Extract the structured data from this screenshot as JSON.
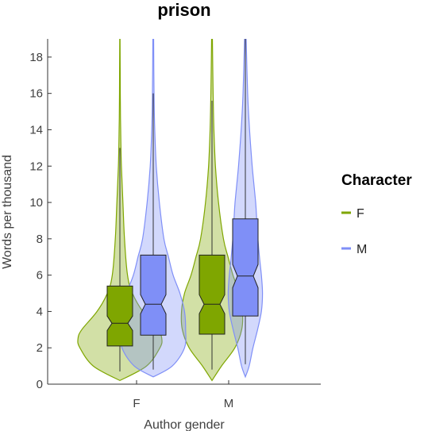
{
  "chart_data": {
    "type": "violin",
    "title": "prison",
    "xlabel": "Author gender",
    "ylabel": "Words per thousand",
    "categories": [
      "F",
      "M"
    ],
    "ylim": [
      0,
      19
    ],
    "yticks": [
      "0",
      "2",
      "4",
      "6",
      "8",
      "10",
      "12",
      "14",
      "16",
      "18"
    ],
    "legend": {
      "title": "Character",
      "position": "right"
    },
    "series": [
      {
        "name": "F",
        "color": "#7fa600",
        "boxes": [
          {
            "category": "F",
            "min": 0.7,
            "q1": 2.1,
            "median": 3.35,
            "q3": 5.4,
            "max": 13.0,
            "violin": [
              [
                0.2,
                0.0
              ],
              [
                1,
                0.7
              ],
              [
                2,
                1.05
              ],
              [
                2.5,
                1.1
              ],
              [
                3,
                1.0
              ],
              [
                4,
                0.6
              ],
              [
                5,
                0.33
              ],
              [
                6,
                0.2
              ],
              [
                8,
                0.12
              ],
              [
                10,
                0.08
              ],
              [
                12,
                0.04
              ],
              [
                14,
                0.02
              ],
              [
                16,
                0.01
              ],
              [
                19,
                0.005
              ]
            ]
          },
          {
            "category": "M",
            "min": 0.8,
            "q1": 2.75,
            "median": 4.4,
            "q3": 7.1,
            "max": 15.6,
            "violin": [
              [
                0.2,
                0.0
              ],
              [
                1,
                0.25
              ],
              [
                2,
                0.6
              ],
              [
                3,
                0.78
              ],
              [
                4,
                0.8
              ],
              [
                5,
                0.72
              ],
              [
                6,
                0.55
              ],
              [
                7,
                0.42
              ],
              [
                8,
                0.3
              ],
              [
                10,
                0.17
              ],
              [
                12,
                0.09
              ],
              [
                14,
                0.05
              ],
              [
                16,
                0.03
              ],
              [
                19,
                0.01
              ]
            ]
          }
        ]
      },
      {
        "name": "M",
        "color": "#7f8ff7",
        "boxes": [
          {
            "category": "F",
            "min": 0.8,
            "q1": 2.7,
            "median": 4.4,
            "q3": 7.1,
            "max": 16.0,
            "violin": [
              [
                0.4,
                0.0
              ],
              [
                1,
                0.5
              ],
              [
                2,
                0.82
              ],
              [
                3,
                0.85
              ],
              [
                4,
                0.82
              ],
              [
                5,
                0.7
              ],
              [
                6,
                0.52
              ],
              [
                7,
                0.4
              ],
              [
                8,
                0.28
              ],
              [
                10,
                0.16
              ],
              [
                12,
                0.08
              ],
              [
                14,
                0.04
              ],
              [
                16,
                0.02
              ],
              [
                19,
                0.01
              ]
            ]
          },
          {
            "category": "M",
            "min": 1.1,
            "q1": 3.75,
            "median": 5.95,
            "q3": 9.1,
            "max": 19.0,
            "violin": [
              [
                0.4,
                0.0
              ],
              [
                1,
                0.1
              ],
              [
                2,
                0.2
              ],
              [
                3,
                0.32
              ],
              [
                4,
                0.42
              ],
              [
                5,
                0.45
              ],
              [
                6,
                0.42
              ],
              [
                7,
                0.37
              ],
              [
                8,
                0.33
              ],
              [
                9,
                0.3
              ],
              [
                10,
                0.27
              ],
              [
                12,
                0.18
              ],
              [
                14,
                0.11
              ],
              [
                16,
                0.06
              ],
              [
                19,
                0.02
              ]
            ]
          }
        ]
      }
    ]
  }
}
